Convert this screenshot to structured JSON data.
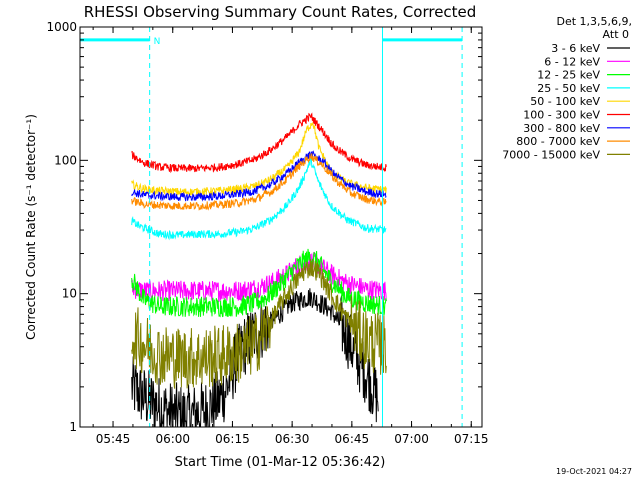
{
  "chart_data": {
    "type": "line",
    "title": "RHESSI Observing Summary Count Rates, Corrected",
    "xlabel": "Start Time (01-Mar-12 05:36:42)",
    "ylabel": "Corrected Count Rate (s⁻¹ detector⁻¹)",
    "yscale": "log",
    "ylim": [
      1,
      1000
    ],
    "xlim_minutes": [
      0,
      101
    ],
    "xtick_minutes": [
      8.3,
      23.3,
      38.3,
      53.3,
      68.3,
      83.3,
      98.3
    ],
    "xtick_labels": [
      "05:45",
      "06:00",
      "06:15",
      "06:30",
      "06:45",
      "07:00",
      "07:15"
    ],
    "ytick_values": [
      1,
      10,
      100,
      1000
    ],
    "ytick_labels": [
      "1",
      "10",
      "100",
      "1000"
    ],
    "legend": {
      "placement": "right",
      "header": [
        "Det 1,3,5,6,9,",
        "Att 0"
      ]
    },
    "data_gap_flag_label": "N",
    "attenuator_bars": {
      "level": 800,
      "segments": [
        [
          0,
          17.5
        ],
        [
          76,
          96
        ]
      ]
    },
    "markers": {
      "dashed_x_minutes": [
        17.5,
        96
      ],
      "solid_x_minutes": [
        76
      ]
    },
    "series": [
      {
        "name": "3 - 6 keV",
        "color": "#000000",
        "x": [
          13,
          17,
          22,
          27,
          31,
          35,
          37,
          39,
          41,
          44,
          49,
          53,
          58,
          63,
          67,
          69,
          72,
          75
        ],
        "values": [
          2,
          1.6,
          1.3,
          1.2,
          1.3,
          1.6,
          2,
          3,
          4,
          5,
          6.5,
          8.5,
          9.5,
          7.5,
          5,
          3.5,
          2.5,
          1.6
        ]
      },
      {
        "name": "6 - 12 keV",
        "color": "#ff00ff",
        "x": [
          13,
          16,
          20,
          25,
          30,
          35,
          40,
          44,
          48,
          52,
          55,
          58,
          60,
          63,
          67,
          72,
          77
        ],
        "values": [
          11,
          10.5,
          10.5,
          10.5,
          10.5,
          10.5,
          10.5,
          11,
          12,
          14,
          16.5,
          17.5,
          16.5,
          14,
          12,
          10.8,
          10.5
        ]
      },
      {
        "name": "12 - 25 keV",
        "color": "#00ff00",
        "x": [
          13,
          16,
          20,
          25,
          30,
          35,
          40,
          44,
          47,
          50,
          53,
          56,
          58,
          60,
          63,
          67,
          72,
          77
        ],
        "values": [
          13,
          9,
          8,
          8,
          8,
          8,
          8,
          8.5,
          9.5,
          11.5,
          14.5,
          17.5,
          19,
          17,
          12.5,
          9.5,
          8.5,
          8
        ]
      },
      {
        "name": "25 - 50 keV",
        "color": "#00ffff",
        "x": [
          13,
          15,
          20,
          25,
          30,
          35,
          40,
          44,
          48,
          52,
          55,
          58,
          60,
          63,
          67,
          72,
          77
        ],
        "values": [
          35,
          32,
          28,
          27.5,
          28,
          28,
          29,
          31,
          36,
          46,
          62,
          100,
          68,
          46,
          36,
          31,
          30
        ]
      },
      {
        "name": "50 - 100 keV",
        "color": "#ffd700",
        "x": [
          13,
          16,
          20,
          25,
          30,
          35,
          40,
          44,
          48,
          52,
          55,
          57,
          58.5,
          60,
          63,
          67,
          72,
          77
        ],
        "values": [
          66,
          61,
          59,
          58,
          58,
          59,
          61,
          64,
          72,
          88,
          115,
          170,
          195,
          125,
          82,
          68,
          62,
          60
        ]
      },
      {
        "name": "100 - 300 keV",
        "color": "#ff0000",
        "x": [
          13,
          16,
          20,
          25,
          30,
          35,
          40,
          44,
          48,
          52,
          55,
          58,
          61,
          64,
          68,
          72,
          77
        ],
        "values": [
          110,
          96,
          89,
          87,
          87,
          89,
          94,
          102,
          120,
          150,
          185,
          215,
          165,
          125,
          103,
          92,
          88
        ]
      },
      {
        "name": "300 - 800 keV",
        "color": "#0000ff",
        "x": [
          13,
          16,
          20,
          25,
          30,
          35,
          40,
          44,
          48,
          52,
          55,
          58,
          61,
          64,
          68,
          72,
          77
        ],
        "values": [
          58,
          55,
          54,
          53,
          53,
          54,
          56,
          59,
          66,
          80,
          96,
          112,
          98,
          78,
          64,
          58,
          55
        ]
      },
      {
        "name": "800 - 7000 keV",
        "color": "#ff8c00",
        "x": [
          13,
          16,
          20,
          25,
          30,
          35,
          40,
          44,
          48,
          52,
          55,
          58,
          61,
          64,
          68,
          72,
          77
        ],
        "values": [
          50,
          47,
          46,
          45.5,
          45.5,
          46.5,
          48,
          51,
          58,
          72,
          90,
          108,
          92,
          72,
          57,
          51,
          48
        ]
      },
      {
        "name": "7000 - 15000 keV",
        "color": "#808000",
        "x": [
          13,
          16,
          20,
          25,
          30,
          35,
          40,
          44,
          47,
          50,
          53,
          56,
          58,
          60,
          63,
          67,
          72,
          77
        ],
        "values": [
          5,
          4.2,
          3.5,
          3.3,
          3.3,
          3.4,
          3.6,
          4.2,
          5.5,
          8,
          11,
          14.5,
          16,
          14.5,
          10,
          6.5,
          4.5,
          4
        ]
      }
    ]
  },
  "footer": {
    "generated_timestamp": "19-Oct-2021 04:27"
  }
}
